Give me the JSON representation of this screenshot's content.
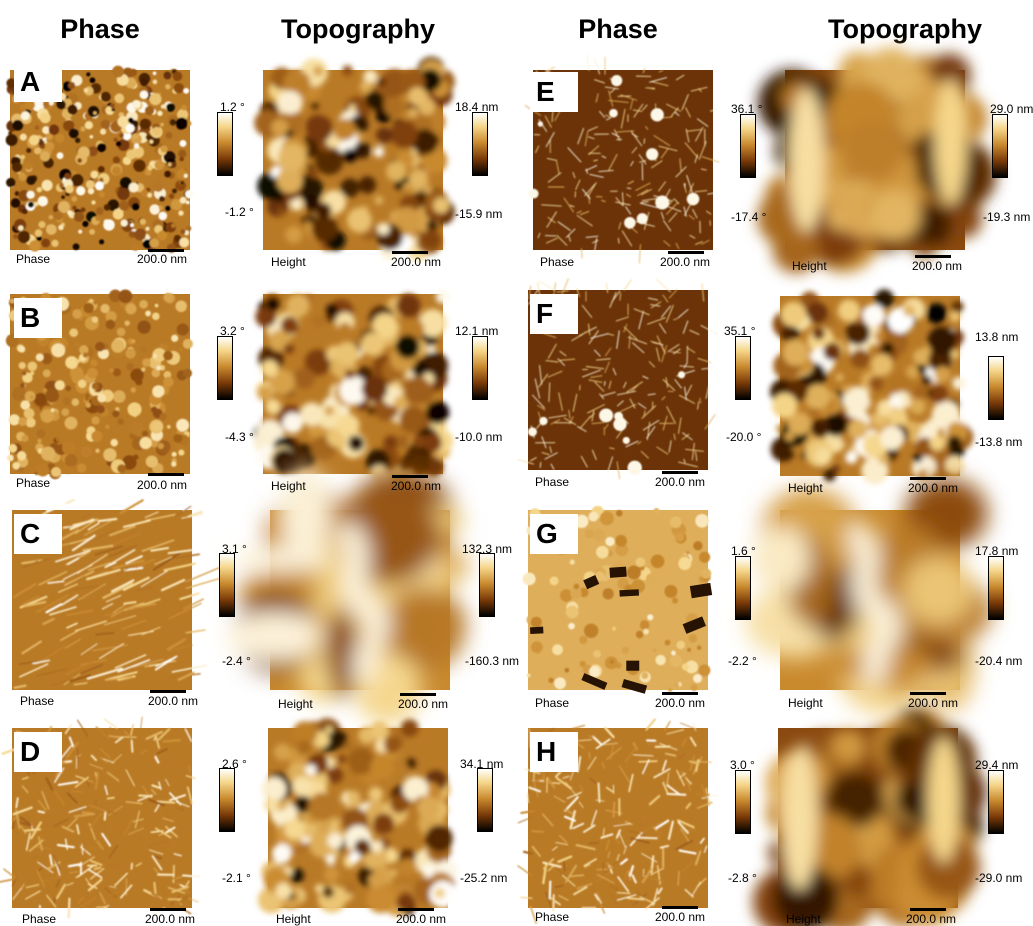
{
  "headers": [
    "Phase",
    "Topography",
    "Phase",
    "Topography"
  ],
  "panels": [
    {
      "letter": "A",
      "phase": {
        "caption": "Phase",
        "scale": "200.0 nm",
        "max": "1.2 °",
        "min": "-1.2 °"
      },
      "topo": {
        "caption": "Height",
        "scale": "200.0 nm",
        "max": "18.4 nm",
        "min": "-15.9 nm"
      }
    },
    {
      "letter": "B",
      "phase": {
        "caption": "Phase",
        "scale": "200.0 nm",
        "max": "3.2 °",
        "min": "-4.3 °"
      },
      "topo": {
        "caption": "Height",
        "scale": "200.0 nm",
        "max": "12.1 nm",
        "min": "-10.0 nm"
      }
    },
    {
      "letter": "C",
      "phase": {
        "caption": "Phase",
        "scale": "200.0 nm",
        "max": "3.1 °",
        "min": "-2.4 °"
      },
      "topo": {
        "caption": "Height",
        "scale": "200.0 nm",
        "max": "132.3 nm",
        "min": "-160.3 nm"
      }
    },
    {
      "letter": "D",
      "phase": {
        "caption": "Phase",
        "scale": "200.0 nm",
        "max": "2.6 °",
        "min": "-2.1 °"
      },
      "topo": {
        "caption": "Height",
        "scale": "200.0 nm",
        "max": "34.1 nm",
        "min": "-25.2 nm"
      }
    },
    {
      "letter": "E",
      "phase": {
        "caption": "Phase",
        "scale": "200.0 nm",
        "max": "36.1 °",
        "min": "-17.4 °"
      },
      "topo": {
        "caption": "Height",
        "scale": "200.0 nm",
        "max": "29.0 nm",
        "min": "-19.3 nm"
      }
    },
    {
      "letter": "F",
      "phase": {
        "caption": "Phase",
        "scale": "200.0 nm",
        "max": "35.1 °",
        "min": "-20.0 °"
      },
      "topo": {
        "caption": "Height",
        "scale": "200.0 nm",
        "max": "13.8 nm",
        "min": "-13.8 nm"
      }
    },
    {
      "letter": "G",
      "phase": {
        "caption": "Phase",
        "scale": "200.0 nm",
        "max": "1.6 °",
        "min": "-2.2 °"
      },
      "topo": {
        "caption": "Height",
        "scale": "200.0 nm",
        "max": "17.8 nm",
        "min": "-20.4 nm"
      }
    },
    {
      "letter": "H",
      "phase": {
        "caption": "Phase",
        "scale": "200.0 nm",
        "max": "3.0 °",
        "min": "-2.8 °"
      },
      "topo": {
        "caption": "Height",
        "scale": "200.0 nm",
        "max": "29.4 nm",
        "min": "-29.0 nm"
      }
    }
  ],
  "colormap": [
    "#000000",
    "#7a3a08",
    "#c98a2e",
    "#f5d68a",
    "#ffffff"
  ]
}
